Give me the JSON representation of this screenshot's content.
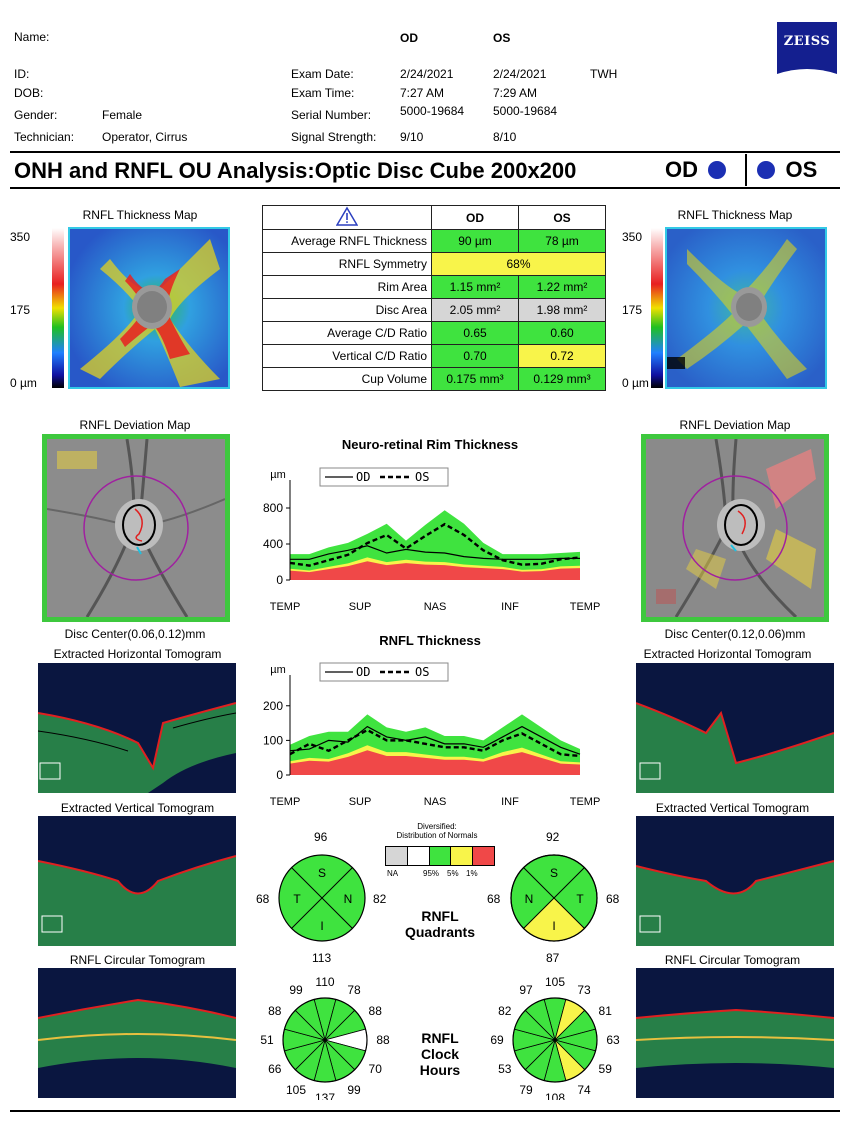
{
  "header": {
    "labels": {
      "name": "Name:",
      "id": "ID:",
      "dob": "DOB:",
      "gender": "Gender:",
      "technician": "Technician:"
    },
    "gender_value": "Female",
    "technician_value": "Operator, Cirrus",
    "exam_labels": {
      "date": "Exam Date:",
      "time": "Exam Time:",
      "serial": "Serial Number:",
      "signal": "Signal Strength:"
    },
    "od": {
      "label": "OD",
      "date": "2/24/2021",
      "time": "7:27 AM",
      "serial": "5000-19684",
      "signal": "9/10"
    },
    "os": {
      "label": "OS",
      "date": "2/24/2021",
      "time": "7:29 AM",
      "serial": "5000-19684",
      "signal": "8/10"
    },
    "initials": "TWH",
    "logo": "ZEISS"
  },
  "title": "ONH and RNFL OU Analysis:Optic Disc Cube 200x200",
  "eye_od": "OD",
  "eye_os": "OS",
  "thickness_map": {
    "title": "RNFL Thickness Map",
    "scale_top": "350",
    "scale_mid": "175",
    "scale_bottom": "0 µm"
  },
  "deviation_map": {
    "title": "RNFL Deviation Map"
  },
  "disc_center": {
    "od": "Disc Center(0.06,0.12)mm",
    "os": "Disc Center(0.12,0.06)mm"
  },
  "tomograms": {
    "horizontal": "Extracted Horizontal Tomogram",
    "vertical": "Extracted Vertical Tomogram",
    "circular": "RNFL Circular Tomogram"
  },
  "metrics": {
    "warning_icon": "warning-triangle-icon",
    "col_od": "OD",
    "col_os": "OS",
    "rows": [
      {
        "label": "Average RNFL Thickness",
        "od": "90 µm",
        "os": "78 µm",
        "od_color": "green",
        "os_color": "green"
      },
      {
        "label": "RNFL Symmetry",
        "span": "68%",
        "color": "yellow"
      },
      {
        "label": "Rim Area",
        "od": "1.15 mm²",
        "os": "1.22 mm²",
        "od_color": "green",
        "os_color": "green"
      },
      {
        "label": "Disc Area",
        "od": "2.05 mm²",
        "os": "1.98 mm²",
        "od_color": "gray",
        "os_color": "gray"
      },
      {
        "label": "Average C/D Ratio",
        "od": "0.65",
        "os": "0.60",
        "od_color": "green",
        "os_color": "green"
      },
      {
        "label": "Vertical C/D Ratio",
        "od": "0.70",
        "os": "0.72",
        "od_color": "green",
        "os_color": "yellow"
      },
      {
        "label": "Cup Volume",
        "od": "0.175 mm³",
        "os": "0.129 mm³",
        "od_color": "green",
        "os_color": "green"
      }
    ]
  },
  "chart_data": [
    {
      "type": "line",
      "title": "Neuro-retinal Rim Thickness",
      "ylabel": "µm",
      "yticks": [
        "800",
        "400",
        "0"
      ],
      "ylim": [
        0,
        1000
      ],
      "xticks": [
        "TEMP",
        "SUP",
        "NAS",
        "INF",
        "TEMP"
      ],
      "legend": [
        "OD",
        "OS"
      ],
      "series": [
        {
          "name": "OD",
          "values": [
            230,
            230,
            290,
            330,
            380,
            300,
            340,
            310,
            300,
            260,
            240,
            230,
            230,
            230,
            240,
            240
          ]
        },
        {
          "name": "OS",
          "values": [
            190,
            160,
            220,
            280,
            410,
            500,
            350,
            490,
            620,
            500,
            330,
            220,
            170,
            180,
            230,
            250
          ]
        }
      ]
    },
    {
      "type": "line",
      "title": "RNFL Thickness",
      "ylabel": "µm",
      "yticks": [
        "200",
        "100",
        "0"
      ],
      "ylim": [
        0,
        260
      ],
      "xticks": [
        "TEMP",
        "SUP",
        "NAS",
        "INF",
        "TEMP"
      ],
      "legend": [
        "OD",
        "OS"
      ],
      "series": [
        {
          "name": "OD",
          "values": [
            70,
            75,
            100,
            95,
            140,
            110,
            100,
            110,
            90,
            90,
            80,
            110,
            140,
            110,
            80,
            60
          ]
        },
        {
          "name": "OS",
          "values": [
            60,
            90,
            70,
            100,
            130,
            100,
            100,
            90,
            80,
            80,
            70,
            100,
            120,
            90,
            60,
            55
          ]
        }
      ]
    }
  ],
  "quadrants": {
    "title_line1": "RNFL",
    "title_line2": "Quadrants",
    "od": {
      "top": "96",
      "left": "68",
      "right": "82",
      "bottom": "113",
      "s": "S",
      "t": "T",
      "n": "N",
      "i": "I"
    },
    "os": {
      "top": "92",
      "left": "68",
      "right": "68",
      "bottom": "87",
      "s": "S",
      "n": "N",
      "t": "T",
      "i": "I"
    }
  },
  "legend": {
    "title_line1": "Diversified:",
    "title_line2": "Distribution of Normals",
    "na": "NA",
    "p95": "95%",
    "p5": "5%",
    "p1": "1%"
  },
  "clock_hours": {
    "title_line1": "RNFL",
    "title_line2": "Clock",
    "title_line3": "Hours",
    "od": [
      "110",
      "78",
      "88",
      "88",
      "70",
      "99",
      "137",
      "105",
      "66",
      "51",
      "88",
      "99"
    ],
    "os": [
      "105",
      "73",
      "81",
      "63",
      "59",
      "74",
      "108",
      "79",
      "53",
      "69",
      "82",
      "97"
    ]
  },
  "colors": {
    "green": "#3fe33f",
    "yellow": "#f8f44a",
    "red": "#f04848",
    "gray": "#d6d6d6",
    "od_blue": "#1b2fb3"
  }
}
